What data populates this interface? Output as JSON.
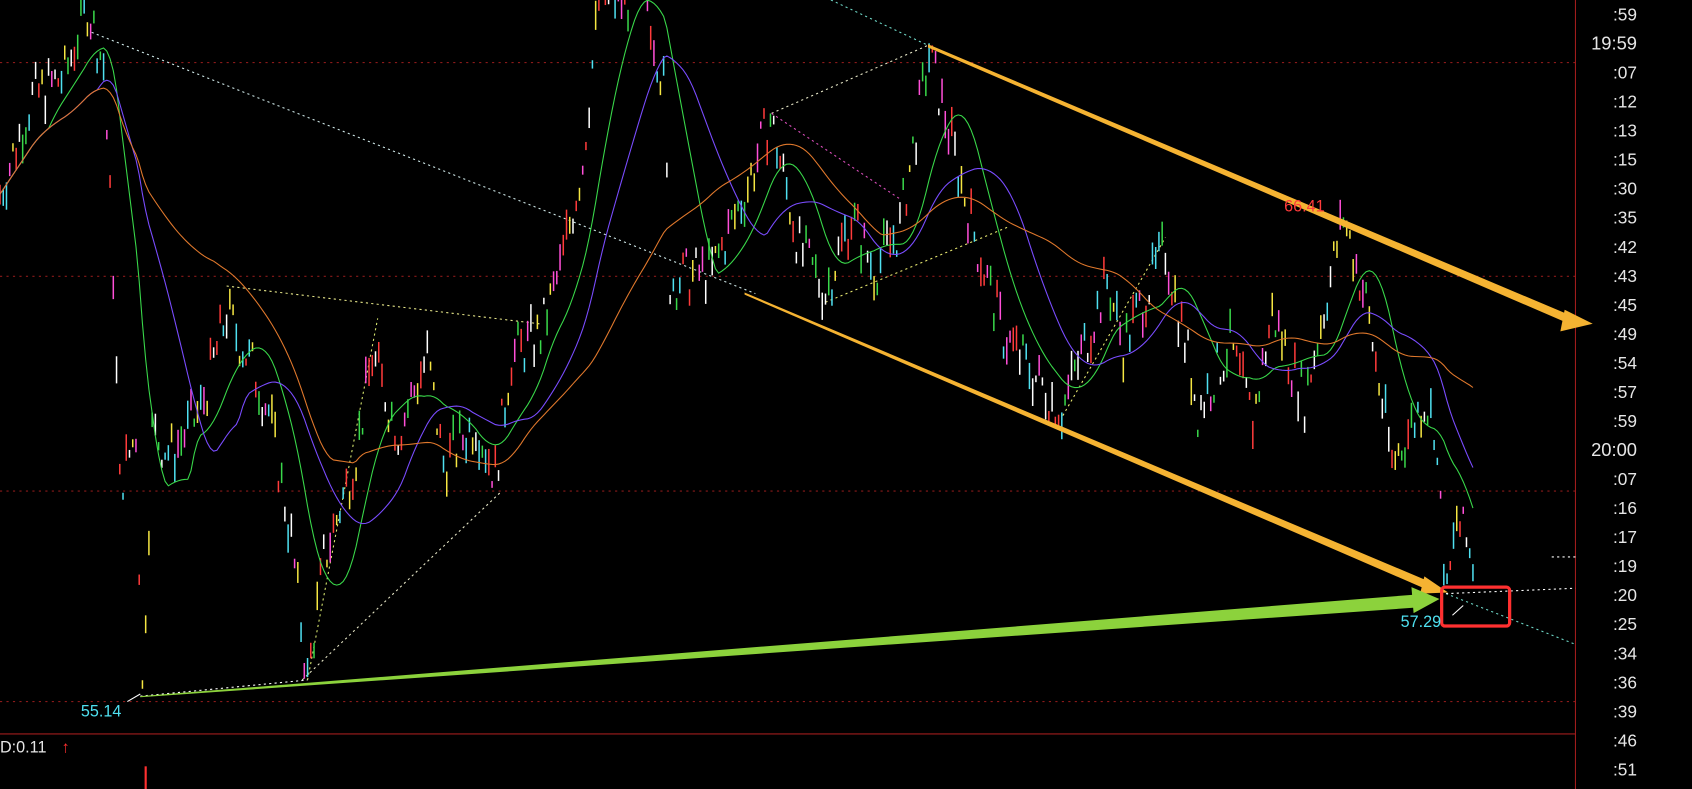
{
  "colors": {
    "background": "#000000",
    "grid": "#8b1a1a",
    "up_arrow": "#f5b332",
    "support_arrow": "#8cd23c",
    "highlight_box": "#ff3030",
    "label_high": "#ff3b3b",
    "label_low": "#4fe0f0",
    "ma_short": "#39d84a",
    "ma_mid": "#7a4cff",
    "ma_long": "#e0782c"
  },
  "indicator": {
    "label": "D:0.11",
    "arrow": "↑"
  },
  "right_axis": {
    "labels": [
      ":59",
      "19:59",
      ":07",
      ":12",
      ":13",
      ":15",
      ":30",
      ":35",
      ":42",
      ":43",
      ":45",
      ":49",
      ":54",
      ":57",
      ":59",
      "20:00",
      ":07",
      ":16",
      ":17",
      ":19",
      ":20",
      ":25",
      ":34",
      ":36",
      ":39",
      ":46",
      ":51"
    ]
  },
  "chart_data": {
    "type": "candlestick",
    "title": "",
    "xlabel": "",
    "ylabel": "",
    "grid": true,
    "annotations": [
      {
        "text": "66.41",
        "kind": "local-high",
        "price": 66.41
      },
      {
        "text": "57.29",
        "kind": "local-low",
        "price": 57.29
      },
      {
        "text": "55.14",
        "kind": "low",
        "price": 55.14
      }
    ],
    "price_path": {
      "bar": [
        0,
        10,
        20,
        27,
        32,
        35,
        37,
        42,
        44,
        47,
        53,
        62,
        70,
        78,
        83,
        90,
        95,
        100,
        110,
        115,
        123,
        132,
        137,
        147,
        153,
        158,
        167,
        173,
        180,
        185,
        193,
        200,
        205,
        207,
        220,
        230,
        238,
        247,
        255,
        263,
        270,
        278,
        287,
        293,
        302,
        310,
        320,
        328,
        342,
        347,
        360,
        367,
        370,
        380,
        387,
        393,
        403,
        415,
        422,
        430,
        440,
        443,
        447,
        450,
        455
      ],
      "price": [
        66.92,
        69.22,
        69.73,
        71.4,
        69.99,
        65.12,
        60.0,
        61.28,
        55.14,
        61.28,
        60.77,
        61.8,
        64.1,
        62.82,
        61.8,
        58.72,
        55.4,
        58.21,
        60.77,
        63.08,
        61.28,
        63.08,
        60.52,
        61.54,
        60.26,
        63.08,
        63.59,
        65.12,
        67.68,
        71.52,
        71.52,
        71.52,
        69.48,
        64.87,
        65.12,
        66.92,
        68.71,
        65.64,
        64.61,
        66.4,
        65.12,
        66.15,
        70.24,
        68.45,
        65.64,
        63.59,
        62.56,
        61.8,
        64.87,
        63.33,
        65.64,
        63.08,
        61.8,
        63.33,
        61.54,
        64.1,
        62.05,
        66.41,
        64.36,
        60.52,
        62.05,
        61.54,
        57.29,
        59.24,
        58.21
      ]
    },
    "moving_averages": [
      {
        "color": "#39d84a",
        "window": 5
      },
      {
        "color": "#7a4cff",
        "window": 10
      },
      {
        "color": "#e0782c",
        "window": 22
      }
    ],
    "trend_arrows": [
      {
        "color": "#f5b332",
        "direction": "down",
        "role": "upper-channel"
      },
      {
        "color": "#f5b332",
        "direction": "down",
        "role": "lower-channel"
      },
      {
        "color": "#8cd23c",
        "direction": "up",
        "role": "support"
      }
    ]
  }
}
